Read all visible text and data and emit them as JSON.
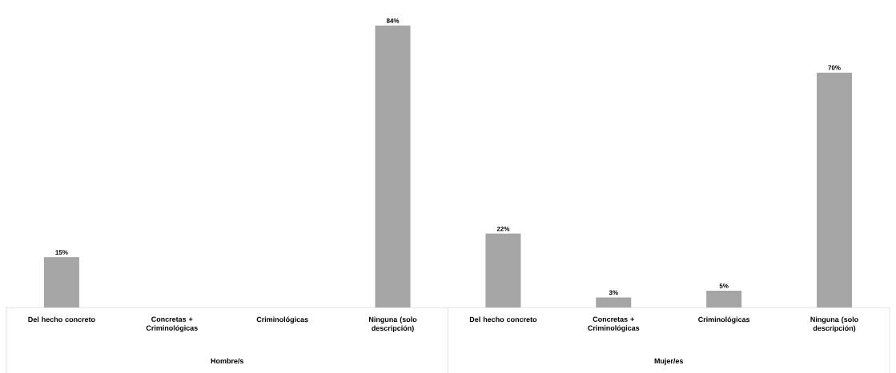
{
  "chart_data": {
    "type": "bar",
    "categories": [
      "Del hecho concreto",
      "Concretas + Criminológicas",
      "Criminológicas",
      "Ninguna (solo descripción)",
      "Del hecho concreto",
      "Concretas + Criminológicas",
      "Criminológicas",
      "Ninguna (solo descripción)"
    ],
    "values": [
      15,
      null,
      null,
      84,
      22,
      3,
      5,
      70
    ],
    "value_labels": [
      "15%",
      null,
      null,
      "84%",
      "22%",
      "3%",
      "5%",
      "70%"
    ],
    "color": "#a5a5a5",
    "annotations": [
      "Hombre/s",
      "Mujer/es"
    ]
  }
}
